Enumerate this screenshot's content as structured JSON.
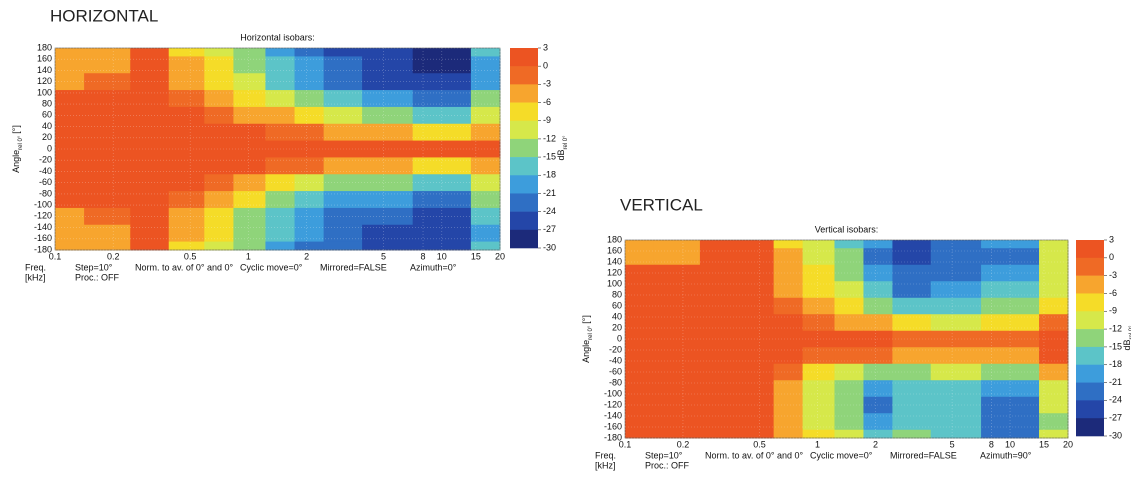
{
  "chart_data": [
    {
      "type": "contour",
      "heading": "HORIZONTAL",
      "title": "Horizontal isobars:",
      "ylabel": [
        "Angle",
        "rel 0°",
        "[°]"
      ],
      "xlabel": [
        "Freq.",
        "[kHz]"
      ],
      "colorbar_label": [
        "dB",
        "rel 0°"
      ],
      "footer": [
        "Step=10°",
        "Norm. to av. of 0° and 0°",
        "Cyclic move=0°",
        "Mirrored=FALSE",
        "Azimuth=0°"
      ],
      "footer2": "Proc.: OFF",
      "log_x": true,
      "x": [
        0.1,
        0.2,
        0.3,
        0.5,
        0.7,
        1,
        1.5,
        2,
        3,
        5,
        10,
        20
      ],
      "y": [
        180,
        150,
        120,
        90,
        60,
        30,
        0,
        -30,
        -60,
        -90,
        -120,
        -150,
        -180
      ],
      "z": [
        [
          -4,
          -4,
          0,
          -7,
          -10,
          -15,
          -20,
          -22,
          -25,
          -27,
          -28,
          -18
        ],
        [
          -4,
          -4,
          0,
          -6,
          -9,
          -14,
          -18,
          -21,
          -24,
          -26,
          -28,
          -20
        ],
        [
          -4,
          -2,
          0,
          -5,
          -7,
          -12,
          -16,
          -19,
          -22,
          -25,
          -26,
          -20
        ],
        [
          0,
          0,
          0,
          -3,
          -5,
          -8,
          -12,
          -15,
          -18,
          -21,
          -24,
          -15
        ],
        [
          0,
          0,
          0,
          0,
          -2,
          -4,
          -6,
          -9,
          -12,
          -15,
          -18,
          -10
        ],
        [
          1,
          1,
          1,
          1,
          0,
          0,
          -1,
          -2,
          -4,
          -6,
          -9,
          -6
        ],
        [
          1,
          1,
          1,
          1,
          1,
          1,
          1,
          1,
          1,
          1,
          0,
          0
        ],
        [
          1,
          1,
          1,
          1,
          0,
          0,
          -1,
          -2,
          -4,
          -6,
          -9,
          -6
        ],
        [
          0,
          0,
          0,
          0,
          -2,
          -4,
          -7,
          -10,
          -13,
          -15,
          -18,
          -10
        ],
        [
          0,
          0,
          0,
          -3,
          -5,
          -9,
          -13,
          -16,
          -19,
          -21,
          -23,
          -14
        ],
        [
          -4,
          -2,
          0,
          -5,
          -8,
          -13,
          -17,
          -20,
          -22,
          -24,
          -25,
          -18
        ],
        [
          -4,
          -4,
          0,
          -6,
          -9,
          -14,
          -18,
          -21,
          -23,
          -25,
          -27,
          -20
        ],
        [
          -4,
          -4,
          0,
          -7,
          -10,
          -15,
          -19,
          -22,
          -24,
          -26,
          -27,
          -18
        ]
      ],
      "xlim": [
        0.1,
        20
      ],
      "xticks": [
        0.1,
        0.2,
        0.5,
        1,
        2,
        5,
        8,
        10,
        15,
        20
      ],
      "ylim": [
        -180,
        180
      ],
      "yticks": [
        180,
        160,
        140,
        120,
        100,
        80,
        60,
        40,
        20,
        0,
        -20,
        -40,
        -60,
        -80,
        -100,
        -120,
        -140,
        -160,
        -180
      ],
      "grid": true,
      "levels": [
        3,
        0,
        -3,
        -6,
        -9,
        -12,
        -15,
        -18,
        -21,
        -24,
        -27,
        -30
      ],
      "colors": [
        "#ec5422",
        "#ef6a25",
        "#f7a52e",
        "#f5dc28",
        "#d6e84a",
        "#8fd47a",
        "#5cc4c8",
        "#3d9ddc",
        "#2f6fc4",
        "#2446a8",
        "#1c2a7a"
      ]
    },
    {
      "type": "contour",
      "heading": "VERTICAL",
      "title": "Vertical isobars:",
      "ylabel": [
        "Angle",
        "rel 0°",
        "[°]"
      ],
      "xlabel": [
        "Freq.",
        "[kHz]"
      ],
      "colorbar_label": [
        "dB",
        "rel 0°"
      ],
      "footer": [
        "Step=10°",
        "Norm. to av. of 0° and 0°",
        "Cyclic move=0°",
        "Mirrored=FALSE",
        "Azimuth=90°"
      ],
      "footer2": "Proc.: OFF",
      "log_x": true,
      "x": [
        0.1,
        0.2,
        0.3,
        0.5,
        0.7,
        1,
        1.5,
        2,
        3,
        5,
        10,
        20
      ],
      "y": [
        180,
        150,
        120,
        90,
        60,
        30,
        0,
        -30,
        -60,
        -90,
        -120,
        -150,
        -180
      ],
      "z": [
        [
          -4,
          -4,
          0,
          0,
          -7,
          -12,
          -18,
          -20,
          -25,
          -24,
          -20,
          -10
        ],
        [
          -4,
          -4,
          0,
          0,
          -6,
          -10,
          -15,
          -22,
          -26,
          -24,
          -22,
          -12
        ],
        [
          0,
          0,
          0,
          0,
          -5,
          -9,
          -14,
          -20,
          -24,
          -22,
          -20,
          -12
        ],
        [
          0,
          0,
          0,
          0,
          -4,
          -8,
          -12,
          -18,
          -22,
          -20,
          -18,
          -10
        ],
        [
          0,
          0,
          0,
          0,
          -3,
          -6,
          -9,
          -13,
          -16,
          -17,
          -14,
          -8
        ],
        [
          1,
          1,
          1,
          1,
          0,
          -2,
          -4,
          -6,
          -9,
          -10,
          -9,
          -3
        ],
        [
          1,
          1,
          1,
          1,
          1,
          1,
          0,
          0,
          -1,
          -2,
          -2,
          1
        ],
        [
          1,
          1,
          1,
          1,
          0,
          -1,
          -2,
          -3,
          -5,
          -6,
          -6,
          0
        ],
        [
          0,
          0,
          0,
          0,
          -3,
          -7,
          -10,
          -14,
          -13,
          -12,
          -15,
          -6
        ],
        [
          0,
          0,
          0,
          0,
          -5,
          -10,
          -13,
          -20,
          -16,
          -17,
          -20,
          -10
        ],
        [
          0,
          0,
          0,
          0,
          -6,
          -11,
          -15,
          -22,
          -18,
          -16,
          -22,
          -12
        ],
        [
          0,
          0,
          0,
          0,
          -5,
          -10,
          -14,
          -20,
          -17,
          -18,
          -24,
          -14
        ],
        [
          0,
          0,
          0,
          0,
          -4,
          -9,
          -12,
          -18,
          -15,
          -16,
          -22,
          -10
        ]
      ],
      "xlim": [
        0.1,
        20
      ],
      "xticks": [
        0.1,
        0.2,
        0.5,
        1,
        2,
        5,
        8,
        10,
        15,
        20
      ],
      "ylim": [
        -180,
        180
      ],
      "yticks": [
        180,
        160,
        140,
        120,
        100,
        80,
        60,
        40,
        20,
        0,
        -20,
        -40,
        -60,
        -80,
        -100,
        -120,
        -140,
        -160,
        -180
      ],
      "grid": true,
      "levels": [
        3,
        0,
        -3,
        -6,
        -9,
        -12,
        -15,
        -18,
        -21,
        -24,
        -27,
        -30
      ],
      "colors": [
        "#ec5422",
        "#ef6a25",
        "#f7a52e",
        "#f5dc28",
        "#d6e84a",
        "#8fd47a",
        "#5cc4c8",
        "#3d9ddc",
        "#2f6fc4",
        "#2446a8",
        "#1c2a7a"
      ]
    }
  ]
}
